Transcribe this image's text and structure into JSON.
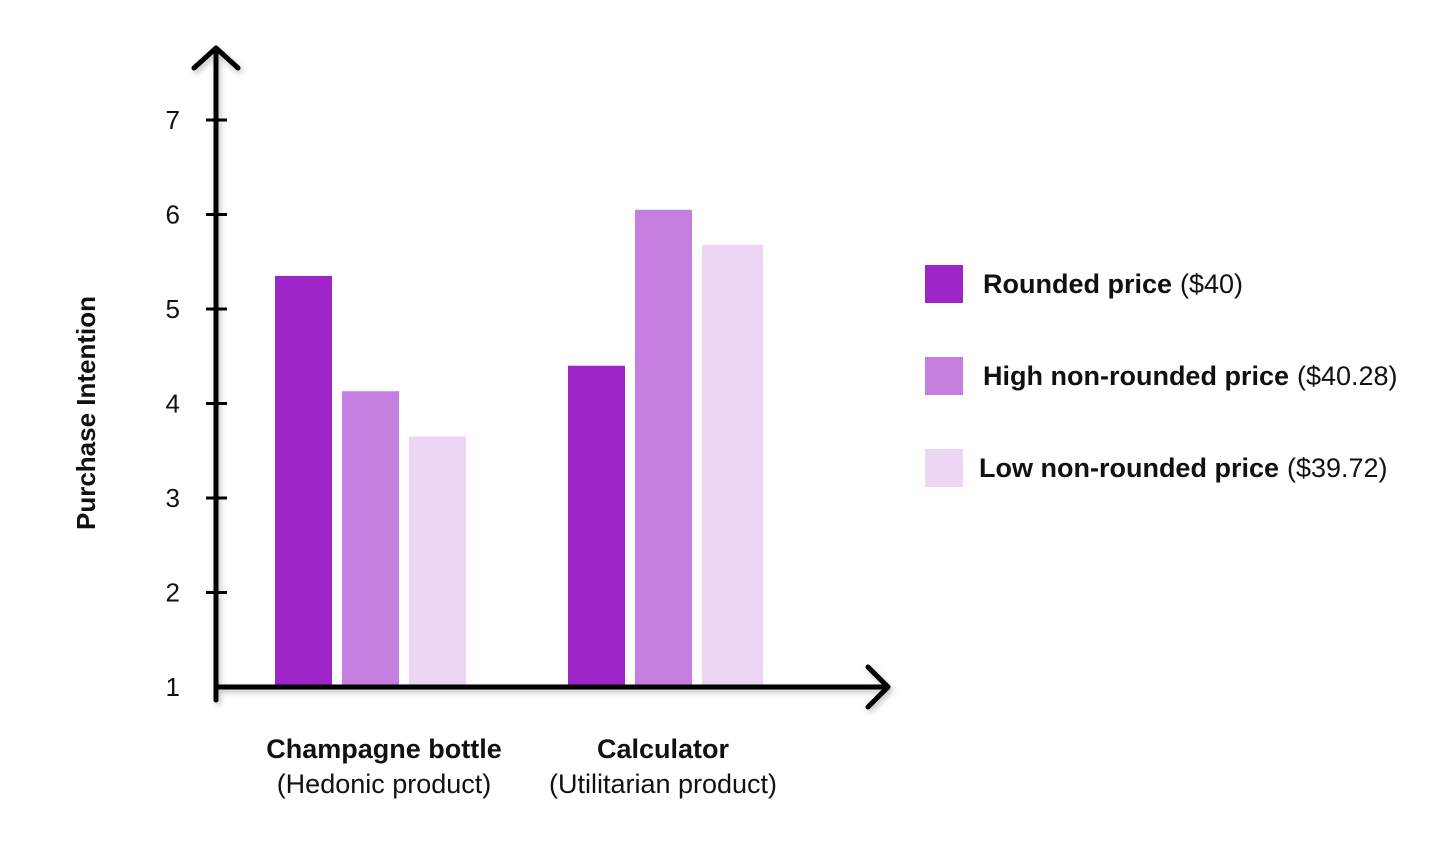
{
  "chart_data": {
    "type": "bar",
    "ylabel": "Purchase Intention",
    "ylim": [
      1,
      7
    ],
    "yticks": [
      "1",
      "2",
      "3",
      "4",
      "5",
      "6",
      "7"
    ],
    "grid": false,
    "legend_position": "right",
    "categories": [
      {
        "name": "Champagne bottle",
        "sub": "(Hedonic product)"
      },
      {
        "name": "Calculator",
        "sub": "(Utilitarian product)"
      }
    ],
    "series": [
      {
        "name": "Rounded price",
        "price": "($40)",
        "color": "#9f25c9",
        "values": [
          5.35,
          4.4
        ]
      },
      {
        "name": "High non-rounded price",
        "price": "($40.28)",
        "color": "#c57fe0",
        "values": [
          4.13,
          6.05
        ]
      },
      {
        "name": "Low non-rounded price",
        "price": "($39.72)",
        "color": "#ecd6f3",
        "values": [
          3.65,
          5.68
        ]
      }
    ]
  }
}
